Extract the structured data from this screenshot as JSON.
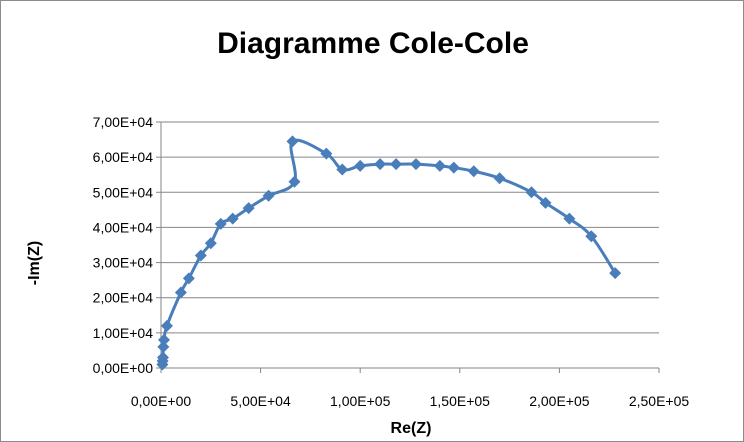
{
  "chart_data": {
    "type": "scatter",
    "title": "Diagramme Cole-Cole",
    "xlabel": "Re(Z)",
    "ylabel": "-Im(Z)",
    "xlim": [
      0,
      250000
    ],
    "ylim": [
      0,
      70000
    ],
    "x_ticks": [
      "0,00E+00",
      "5,00E+04",
      "1,00E+05",
      "1,50E+05",
      "2,00E+05",
      "2,50E+05"
    ],
    "y_ticks": [
      "0,00E+00",
      "1,00E+04",
      "2,00E+04",
      "3,00E+04",
      "4,00E+04",
      "5,00E+04",
      "6,00E+04",
      "7,00E+04"
    ],
    "grid": "horizontal",
    "legend": "none",
    "series_color": "#4a7ebb",
    "series": [
      {
        "x": [
          700,
          800,
          1000,
          1200,
          1500,
          3000,
          10000,
          14000,
          20000,
          25000,
          30000,
          36000,
          44000,
          54000,
          67000,
          66000,
          83000,
          91000,
          100000,
          110000,
          118000,
          128000,
          140000,
          147000,
          157000,
          170000,
          186000,
          193000,
          205000,
          216000,
          228000
        ],
        "y": [
          1000,
          2000,
          3000,
          6000,
          8000,
          12000,
          21500,
          25500,
          32000,
          35500,
          41000,
          42500,
          45500,
          49000,
          53000,
          64500,
          61000,
          56500,
          57500,
          58000,
          58000,
          58000,
          57500,
          57000,
          56000,
          54000,
          50000,
          47000,
          42500,
          37500,
          27000
        ]
      }
    ]
  }
}
